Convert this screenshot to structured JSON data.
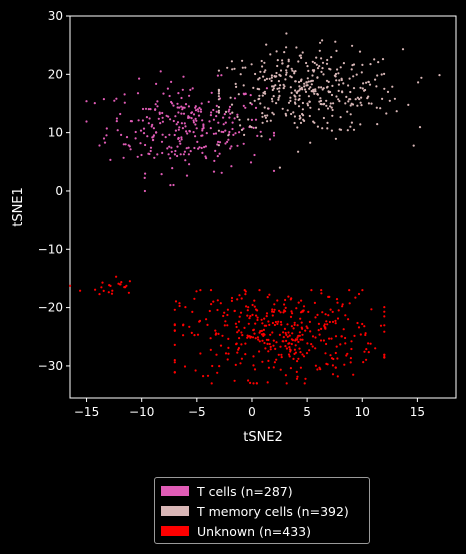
{
  "chart_data": {
    "type": "scatter",
    "title": "",
    "xlabel": "tSNE2",
    "ylabel": "tSNE1",
    "xlim": [
      -16.5,
      18.5
    ],
    "ylim": [
      -35.5,
      30
    ],
    "xticks": [
      -15,
      -10,
      -5,
      0,
      5,
      10,
      15
    ],
    "yticks": [
      -30,
      -20,
      -10,
      0,
      10,
      20,
      30
    ],
    "grid": false,
    "legend_position": "bottom-center outside",
    "series": [
      {
        "name": "T cells (n=287)",
        "color": "#e05cb6",
        "count": 287,
        "cluster": {
          "cx": -6,
          "cy": 11,
          "sx": 3.6,
          "sy": 3.8,
          "xrange": [
            -15,
            2
          ],
          "yrange": [
            0,
            22
          ]
        }
      },
      {
        "name": "T memory cells (n=392)",
        "color": "#d9b7b7",
        "count": 392,
        "cluster": {
          "cx": 5,
          "cy": 17,
          "sx": 4.3,
          "sy": 3.6,
          "xrange": [
            -3,
            17
          ],
          "yrange": [
            4,
            27
          ]
        }
      },
      {
        "name": "Unknown (n=433)",
        "color": "#ff0000",
        "count": 433,
        "cluster": {
          "cx": 2.5,
          "cy": -24.5,
          "sx": 4.5,
          "sy": 3.8,
          "xrange": [
            -7,
            12
          ],
          "yrange": [
            -33,
            -17
          ]
        },
        "extra_cluster": {
          "cx": -13,
          "cy": -16.5,
          "sx": 1.2,
          "sy": 1.0,
          "count": 22
        }
      }
    ]
  }
}
